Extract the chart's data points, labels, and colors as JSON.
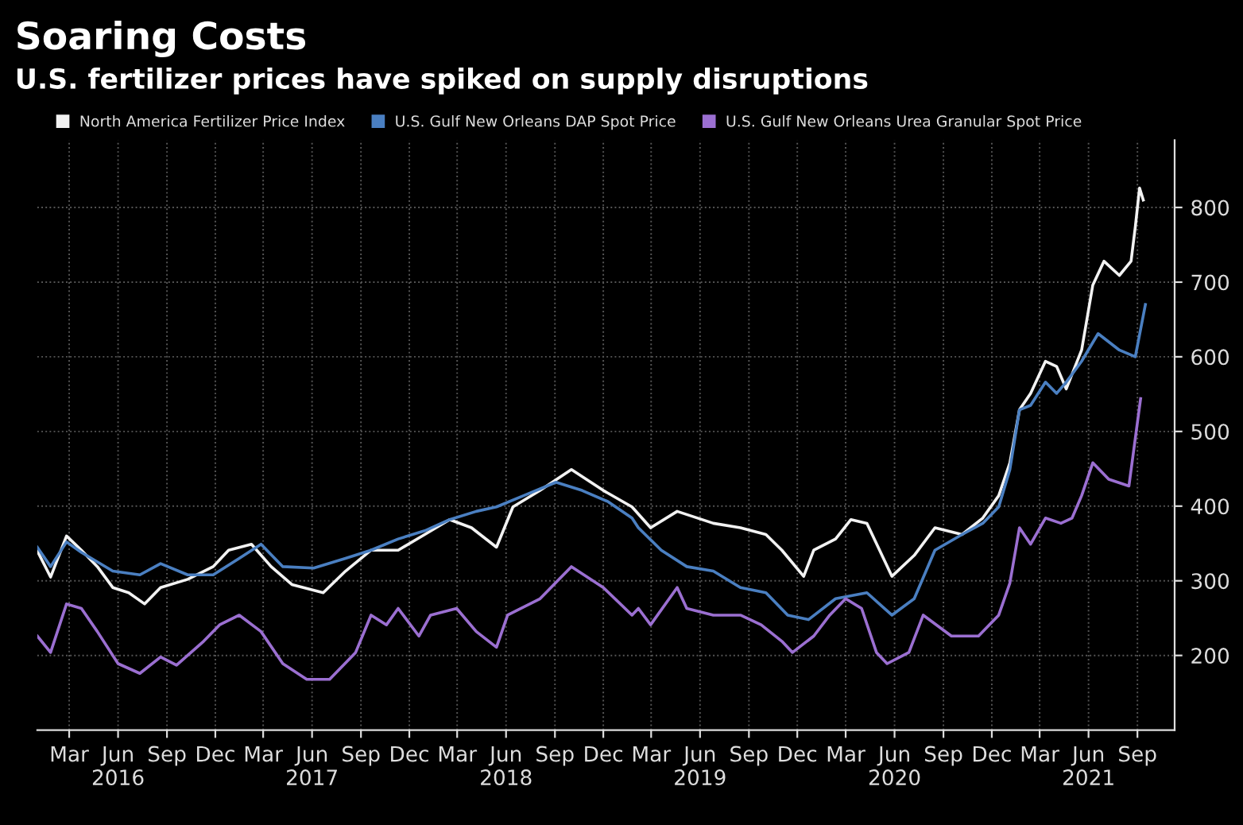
{
  "chart_data": {
    "type": "line",
    "title": "Soaring Costs",
    "subtitle": "U.S. fertilizer prices have spiked on supply disruptions",
    "xlim": [
      "2016-01-01",
      "2021-11-10"
    ],
    "ylim": [
      100,
      890
    ],
    "yticks": [
      200,
      300,
      400,
      500,
      600,
      700,
      800
    ],
    "xticks": [
      {
        "value": "2016-03-01",
        "label": "Mar"
      },
      {
        "value": "2016-06-01",
        "label": "Jun\n2016"
      },
      {
        "value": "2016-09-01",
        "label": "Sep"
      },
      {
        "value": "2016-12-01",
        "label": "Dec"
      },
      {
        "value": "2017-03-01",
        "label": "Mar"
      },
      {
        "value": "2017-06-01",
        "label": "Jun\n2017"
      },
      {
        "value": "2017-09-01",
        "label": "Sep"
      },
      {
        "value": "2017-12-01",
        "label": "Dec"
      },
      {
        "value": "2018-03-01",
        "label": "Mar"
      },
      {
        "value": "2018-06-01",
        "label": "Jun\n2018"
      },
      {
        "value": "2018-09-01",
        "label": "Sep"
      },
      {
        "value": "2018-12-01",
        "label": "Dec"
      },
      {
        "value": "2019-03-01",
        "label": "Mar"
      },
      {
        "value": "2019-06-01",
        "label": "Jun\n2019"
      },
      {
        "value": "2019-09-01",
        "label": "Sep"
      },
      {
        "value": "2019-12-01",
        "label": "Dec"
      },
      {
        "value": "2020-03-01",
        "label": "Mar"
      },
      {
        "value": "2020-06-01",
        "label": "Jun\n2020"
      },
      {
        "value": "2020-09-01",
        "label": "Sep"
      },
      {
        "value": "2020-12-01",
        "label": "Dec"
      },
      {
        "value": "2021-03-01",
        "label": "Mar"
      },
      {
        "value": "2021-06-01",
        "label": "Jun\n2021"
      },
      {
        "value": "2021-09-01",
        "label": "Sep"
      }
    ],
    "grid": true,
    "legend": "top",
    "line_style": "solid",
    "marker": "none",
    "series": [
      {
        "name": "North America Fertilizer Price Index",
        "color": "#f2f2f2",
        "x": [
          "2016-01-01",
          "2016-01-26",
          "2016-02-25",
          "2016-03-24",
          "2016-04-23",
          "2016-05-22",
          "2016-06-21",
          "2016-07-21",
          "2016-08-20",
          "2016-10-10",
          "2016-11-27",
          "2016-12-26",
          "2017-02-07",
          "2017-03-16",
          "2017-04-24",
          "2017-06-22",
          "2017-08-03",
          "2017-09-20",
          "2017-11-10",
          "2017-12-30",
          "2018-02-15",
          "2018-03-28",
          "2018-05-14",
          "2018-06-14",
          "2018-08-04",
          "2018-10-02",
          "2018-12-01",
          "2019-01-24",
          "2019-02-28",
          "2019-04-19",
          "2019-06-26",
          "2019-08-16",
          "2019-10-03",
          "2019-11-02",
          "2019-12-13",
          "2020-01-01",
          "2020-02-11",
          "2020-03-11",
          "2020-04-10",
          "2020-05-27",
          "2020-07-08",
          "2020-08-16",
          "2020-10-06",
          "2020-11-14",
          "2020-12-14",
          "2021-01-04",
          "2021-01-22",
          "2021-02-12",
          "2021-03-12",
          "2021-04-02",
          "2021-04-20",
          "2021-05-19",
          "2021-06-09",
          "2021-06-30",
          "2021-07-29",
          "2021-08-20",
          "2021-08-28",
          "2021-09-05",
          "2021-09-12"
        ],
        "values": [
          340,
          305,
          360,
          341,
          319,
          291,
          284,
          269,
          291,
          302,
          319,
          341,
          349,
          319,
          295,
          284,
          313,
          341,
          341,
          362,
          382,
          371,
          345,
          399,
          421,
          449,
          421,
          399,
          371,
          393,
          377,
          371,
          362,
          341,
          306,
          341,
          356,
          382,
          377,
          306,
          334,
          371,
          362,
          384,
          414,
          458,
          529,
          551,
          594,
          587,
          557,
          609,
          696,
          728,
          709,
          728,
          774,
          826,
          810
        ]
      },
      {
        "name": "U.S. Gulf New Orleans DAP Spot Price",
        "color": "#4a7fc1",
        "x": [
          "2016-01-01",
          "2016-01-26",
          "2016-02-25",
          "2016-03-24",
          "2016-05-22",
          "2016-07-12",
          "2016-08-20",
          "2016-10-10",
          "2016-11-27",
          "2017-01-15",
          "2017-02-25",
          "2017-04-07",
          "2017-06-04",
          "2017-08-03",
          "2017-09-20",
          "2017-11-10",
          "2017-12-30",
          "2018-02-15",
          "2018-04-06",
          "2018-05-14",
          "2018-07-04",
          "2018-09-03",
          "2018-10-22",
          "2018-12-10",
          "2019-01-24",
          "2019-02-05",
          "2019-03-20",
          "2019-05-07",
          "2019-06-26",
          "2019-08-16",
          "2019-10-03",
          "2019-11-13",
          "2019-12-22",
          "2020-02-11",
          "2020-04-10",
          "2020-05-27",
          "2020-07-08",
          "2020-08-16",
          "2020-10-06",
          "2020-11-14",
          "2020-12-14",
          "2021-01-04",
          "2021-01-22",
          "2021-02-12",
          "2021-03-12",
          "2021-04-02",
          "2021-04-20",
          "2021-05-19",
          "2021-06-19",
          "2021-07-29",
          "2021-08-28",
          "2021-09-16"
        ],
        "values": [
          345,
          319,
          352,
          338,
          313,
          308,
          323,
          308,
          308,
          330,
          349,
          319,
          317,
          330,
          341,
          356,
          367,
          382,
          393,
          399,
          414,
          432,
          421,
          406,
          384,
          371,
          341,
          319,
          313,
          291,
          284,
          254,
          248,
          276,
          284,
          254,
          276,
          341,
          362,
          377,
          399,
          449,
          529,
          535,
          566,
          551,
          566,
          594,
          631,
          609,
          600,
          670
        ]
      },
      {
        "name": "U.S. Gulf New Orleans Urea Granular Spot Price",
        "color": "#9b6fd1",
        "x": [
          "2016-01-01",
          "2016-01-26",
          "2016-02-25",
          "2016-03-24",
          "2016-04-23",
          "2016-06-01",
          "2016-07-12",
          "2016-08-20",
          "2016-09-19",
          "2016-11-09",
          "2016-12-09",
          "2017-01-15",
          "2017-02-25",
          "2017-04-07",
          "2017-05-22",
          "2017-07-04",
          "2017-08-22",
          "2017-09-20",
          "2017-10-19",
          "2017-11-10",
          "2017-12-19",
          "2018-01-10",
          "2018-02-28",
          "2018-04-06",
          "2018-05-14",
          "2018-06-04",
          "2018-08-04",
          "2018-10-02",
          "2018-12-01",
          "2019-01-24",
          "2019-02-05",
          "2019-02-28",
          "2019-04-19",
          "2019-05-07",
          "2019-06-26",
          "2019-08-16",
          "2019-09-24",
          "2019-11-02",
          "2019-11-22",
          "2020-01-01",
          "2020-01-31",
          "2020-03-01",
          "2020-03-31",
          "2020-04-28",
          "2020-05-18",
          "2020-06-28",
          "2020-07-25",
          "2020-09-16",
          "2020-11-06",
          "2020-12-14",
          "2021-01-04",
          "2021-01-22",
          "2021-02-12",
          "2021-03-12",
          "2021-04-10",
          "2021-05-01",
          "2021-05-19",
          "2021-06-09",
          "2021-07-09",
          "2021-08-16",
          "2021-09-07"
        ],
        "values": [
          226,
          204,
          269,
          263,
          232,
          189,
          176,
          198,
          187,
          219,
          241,
          254,
          232,
          189,
          168,
          168,
          204,
          254,
          241,
          263,
          226,
          254,
          263,
          232,
          211,
          254,
          276,
          319,
          291,
          254,
          263,
          241,
          291,
          263,
          254,
          254,
          241,
          219,
          204,
          226,
          254,
          276,
          263,
          204,
          189,
          204,
          254,
          226,
          226,
          254,
          297,
          371,
          349,
          384,
          377,
          384,
          414,
          458,
          436,
          427,
          544
        ]
      }
    ]
  }
}
